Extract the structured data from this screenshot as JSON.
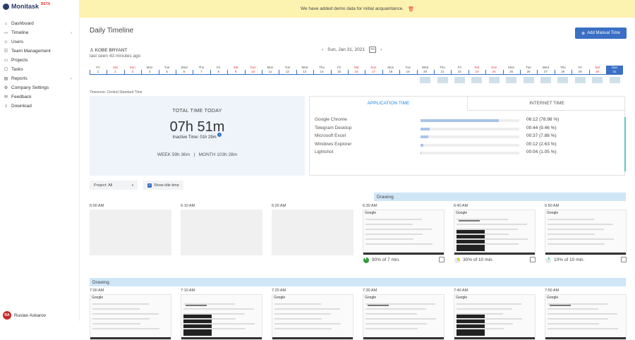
{
  "app": {
    "name": "Monitask",
    "badge": "BETA"
  },
  "sidebar": {
    "items": [
      {
        "label": "Dashboard",
        "icon": "home-icon",
        "glyph": "⌂",
        "chevron": false
      },
      {
        "label": "Timeline",
        "icon": "line-chart-icon",
        "glyph": "〰",
        "chevron": true
      },
      {
        "label": "Users",
        "icon": "user-icon",
        "glyph": "☺",
        "chevron": false
      },
      {
        "label": "Team Management",
        "icon": "team-icon",
        "glyph": "☷",
        "chevron": false
      },
      {
        "label": "Projects",
        "icon": "folder-icon",
        "glyph": "▭",
        "chevron": false
      },
      {
        "label": "Tasks",
        "icon": "tasks-icon",
        "glyph": "☐",
        "chevron": false
      },
      {
        "label": "Reports",
        "icon": "reports-icon",
        "glyph": "▤",
        "chevron": true
      },
      {
        "label": "Company Settings",
        "icon": "gear-icon",
        "glyph": "⚙",
        "chevron": false
      },
      {
        "label": "Feedback",
        "icon": "feedback-icon",
        "glyph": "✉",
        "chevron": false
      },
      {
        "label": "Download",
        "icon": "download-icon",
        "glyph": "⇩",
        "chevron": false
      }
    ],
    "user": {
      "initials": "RA",
      "name": "Ruslan Askarov"
    }
  },
  "banner": {
    "text": "We have added demo data for initial acquaintance."
  },
  "page": {
    "title": "Daily Timeline",
    "add_button": "Add Manual Time",
    "employee": "KOBE BRYANT",
    "last_seen": "last seen 43 minutes ago",
    "date": "Sun, Jan 31, 2021",
    "timezone_label": "Timezone:",
    "timezone": "Central Standard Time"
  },
  "calendar": {
    "days": [
      {
        "n": "Fri",
        "d": "1",
        "w": false
      },
      {
        "n": "Sat",
        "d": "2",
        "w": true
      },
      {
        "n": "Sun",
        "d": "3",
        "w": true
      },
      {
        "n": "Mon",
        "d": "4",
        "w": false
      },
      {
        "n": "Tue",
        "d": "5",
        "w": false
      },
      {
        "n": "Wed",
        "d": "6",
        "w": false
      },
      {
        "n": "Thu",
        "d": "7",
        "w": false
      },
      {
        "n": "Fri",
        "d": "8",
        "w": false
      },
      {
        "n": "Sat",
        "d": "9",
        "w": true
      },
      {
        "n": "Sun",
        "d": "10",
        "w": true
      },
      {
        "n": "Mon",
        "d": "11",
        "w": false
      },
      {
        "n": "Tue",
        "d": "12",
        "w": false
      },
      {
        "n": "Wed",
        "d": "13",
        "w": false
      },
      {
        "n": "Thu",
        "d": "14",
        "w": false
      },
      {
        "n": "Fri",
        "d": "15",
        "w": false
      },
      {
        "n": "Sat",
        "d": "16",
        "w": true
      },
      {
        "n": "Sun",
        "d": "17",
        "w": true
      },
      {
        "n": "Mon",
        "d": "18",
        "w": false
      },
      {
        "n": "Tue",
        "d": "19",
        "w": false
      },
      {
        "n": "Wed",
        "d": "20",
        "w": false
      },
      {
        "n": "Thu",
        "d": "21",
        "w": false
      },
      {
        "n": "Fri",
        "d": "22",
        "w": false
      },
      {
        "n": "Sat",
        "d": "23",
        "w": true
      },
      {
        "n": "Sun",
        "d": "24",
        "w": true
      },
      {
        "n": "Mon",
        "d": "25",
        "w": false
      },
      {
        "n": "Tue",
        "d": "26",
        "w": false
      },
      {
        "n": "Wed",
        "d": "27",
        "w": false
      },
      {
        "n": "Thu",
        "d": "28",
        "w": false
      },
      {
        "n": "Fri",
        "d": "29",
        "w": false
      },
      {
        "n": "Sat",
        "d": "30",
        "w": true
      },
      {
        "n": "Sun",
        "d": "31",
        "w": true
      }
    ],
    "selected": "31",
    "tracked_days": [
      "20",
      "21",
      "22",
      "23",
      "24",
      "25",
      "26",
      "27",
      "28",
      "29",
      "30",
      "31"
    ]
  },
  "totals": {
    "label": "TOTAL TIME TODAY",
    "value": "07h 51m",
    "inactive_label": "Inactive Time:",
    "inactive_value": "01h 29m",
    "week_label": "WEEK",
    "week_value": "59h 36m",
    "month_label": "MONTH",
    "month_value": "103h 28m"
  },
  "app_usage": {
    "tabs": [
      "APPLICATION TIME",
      "INTERNET TIME"
    ],
    "rows": [
      {
        "name": "Google Chrome",
        "time": "06:12",
        "percent": "(78.98 %)",
        "pct": 78.98
      },
      {
        "name": "Telegram Desktop",
        "time": "00:44",
        "percent": "(9.46 %)",
        "pct": 9.46
      },
      {
        "name": "Microsoft Excel",
        "time": "00:37",
        "percent": "(7.88 %)",
        "pct": 7.88
      },
      {
        "name": "Windows Explorer",
        "time": "00:12",
        "percent": "(2.63 %)",
        "pct": 2.63
      },
      {
        "name": "Lightshot",
        "time": "00:04",
        "percent": "(1.05 %)",
        "pct": 1.05
      }
    ]
  },
  "filters": {
    "project_label": "Project:",
    "project_value": "All",
    "idle_label": "Show idle time"
  },
  "timeline": {
    "row1": {
      "project": "Drawing",
      "shots": [
        {
          "time": "6:00 AM",
          "empty": true
        },
        {
          "time": "6:10 AM",
          "empty": true
        },
        {
          "time": "6:20 AM",
          "empty": true
        },
        {
          "time": "6:30 AM",
          "empty": false,
          "tab": "Google",
          "activity": "90% of 7 min.",
          "color": "#2e9d3a"
        },
        {
          "time": "6:40 AM",
          "empty": false,
          "tab": "Google",
          "activity": "30% of 10 min.",
          "color": "#d4d23a"
        },
        {
          "time": "6:50 AM",
          "empty": false,
          "tab": "Google",
          "activity": "10% of 10 min.",
          "color": "#5cc8c0"
        }
      ]
    },
    "row2": {
      "project": "Drawing",
      "shots": [
        {
          "time": "7:00 AM",
          "tab": "Google"
        },
        {
          "time": "7:10 AM",
          "tab": ""
        },
        {
          "time": "7:20 AM",
          "tab": "Google"
        },
        {
          "time": "7:30 AM",
          "tab": "Google"
        },
        {
          "time": "7:40 AM",
          "tab": "Google"
        },
        {
          "time": "7:50 AM",
          "tab": "Google"
        }
      ]
    }
  }
}
